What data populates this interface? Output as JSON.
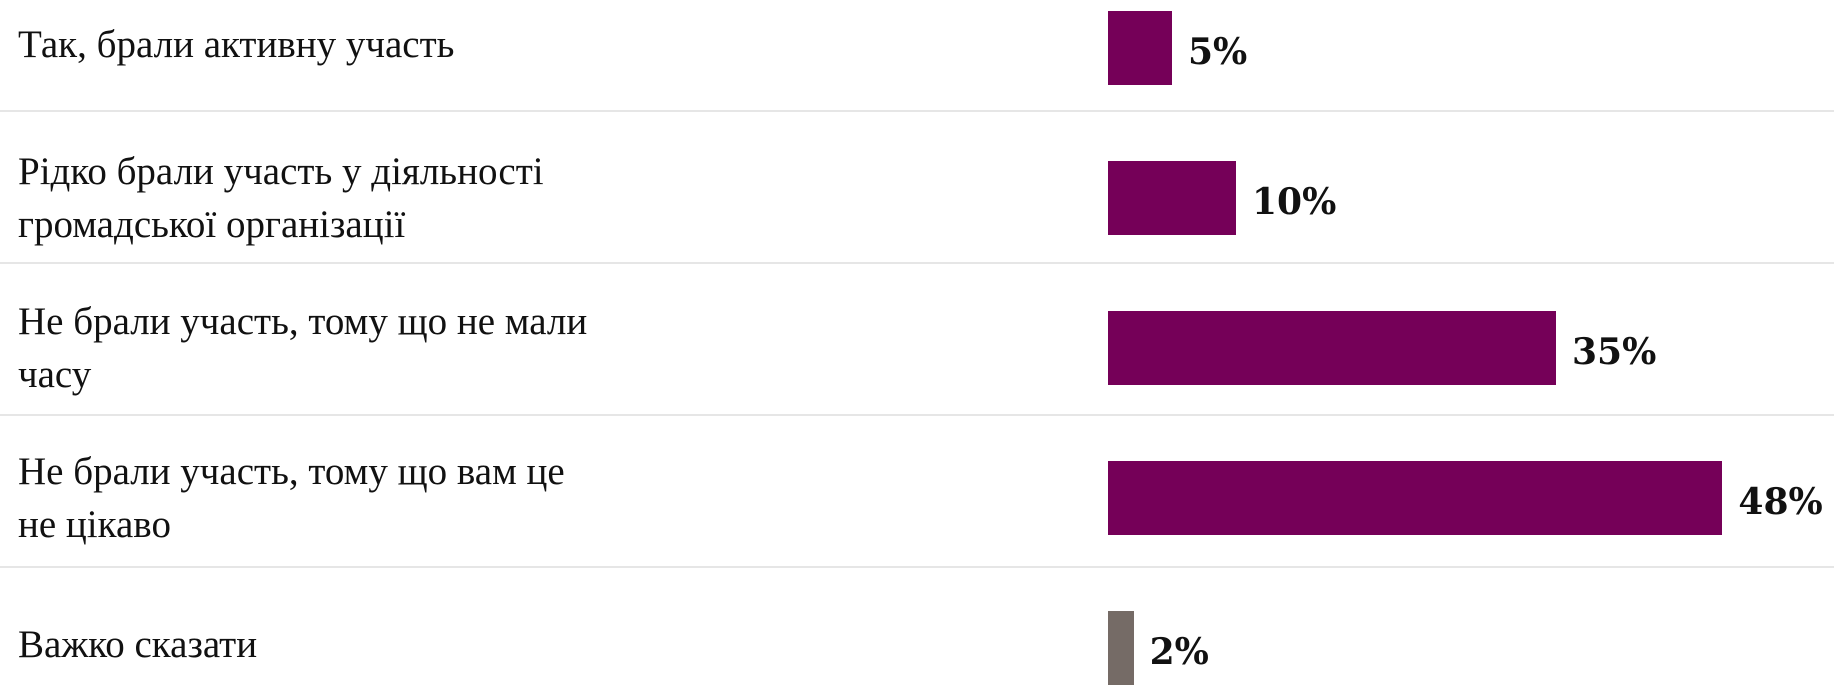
{
  "chart_data": {
    "type": "bar",
    "orientation": "horizontal",
    "categories": [
      "Так, брали активну участь",
      "Рідко брали участь у діяльності\nгромадської організації",
      "Не брали участь, тому що не мали\nчасу",
      "Не брали участь, тому що вам це\nне цікаво",
      "Важко сказати"
    ],
    "values": [
      5,
      10,
      35,
      48,
      2
    ],
    "value_labels": [
      "5%",
      "10%",
      "35%",
      "48%",
      "2%"
    ],
    "bar_colors": [
      "#750058",
      "#750058",
      "#750058",
      "#750058",
      "#756b66"
    ],
    "unit": "%",
    "xlim": [
      0,
      48
    ],
    "grid": false,
    "legend": "none"
  }
}
